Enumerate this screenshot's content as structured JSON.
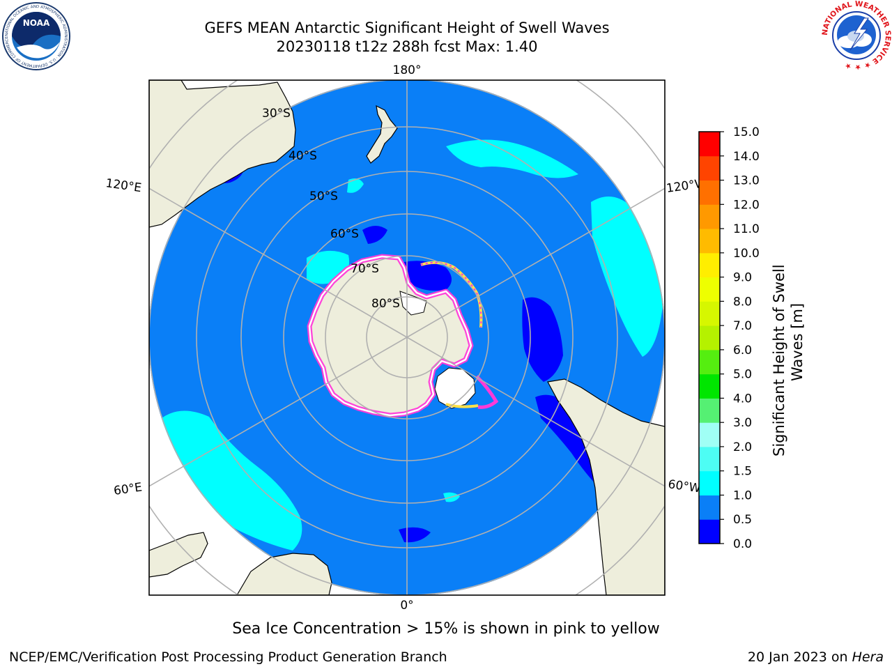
{
  "header": {
    "title_line1": "GEFS MEAN Antarctic Significant Height of Swell Waves",
    "title_line2": "20230118 t12z 288h fcst   Max: 1.40"
  },
  "logos": {
    "left": {
      "name": "NOAA",
      "ring_text": "NATIONAL OCEANIC AND ATMOSPHERIC ADMINISTRATION · U.S. DEPARTMENT OF COMMERCE ·",
      "center_text": "NOAA"
    },
    "right": {
      "name": "National Weather Service",
      "ring_text": "NATIONAL WEATHER SERVICE ★ ★ ★"
    }
  },
  "map": {
    "projection": "South polar stereographic",
    "meridian_labels": {
      "top": "180°",
      "bottom": "0°",
      "left_upper": "120°E",
      "left_lower": "60°E",
      "right_upper": "120°W",
      "right_lower": "60°W"
    },
    "latitude_labels": [
      "30°S",
      "40°S",
      "50°S",
      "60°S",
      "70°S",
      "80°S"
    ],
    "colors": {
      "ocean_swell_0_5_1_0": "#0a7ff7",
      "swell_0_0_5": "#0000ff",
      "swell_1_0_1_5": "#00ffff",
      "land": "#eeeedc",
      "graticule": "#b0b0b0",
      "ice_edge": "#ff3ad8"
    }
  },
  "colorbar": {
    "label": "Significant Height of Swell Waves [m]",
    "label_line1": "Significant Height of Swell",
    "label_line2": "Waves [m]",
    "ticks": [
      "15.0",
      "14.0",
      "13.0",
      "12.0",
      "11.0",
      "10.0",
      "9.0",
      "8.0",
      "7.0",
      "6.0",
      "5.0",
      "4.0",
      "3.0",
      "2.0",
      "1.5",
      "1.0",
      "0.5",
      "0.0"
    ],
    "bins": [
      {
        "from": 0.0,
        "to": 0.5,
        "color": "#0000ff"
      },
      {
        "from": 0.5,
        "to": 1.0,
        "color": "#0a7ff7"
      },
      {
        "from": 1.0,
        "to": 1.5,
        "color": "#00ffff"
      },
      {
        "from": 1.5,
        "to": 2.0,
        "color": "#4dfdf4"
      },
      {
        "from": 2.0,
        "to": 3.0,
        "color": "#a0fff5"
      },
      {
        "from": 3.0,
        "to": 4.0,
        "color": "#55f073"
      },
      {
        "from": 4.0,
        "to": 5.0,
        "color": "#00e600"
      },
      {
        "from": 5.0,
        "to": 6.0,
        "color": "#55ee10"
      },
      {
        "from": 6.0,
        "to": 7.0,
        "color": "#b5f100"
      },
      {
        "from": 7.0,
        "to": 8.0,
        "color": "#d6f700"
      },
      {
        "from": 8.0,
        "to": 9.0,
        "color": "#eeff00"
      },
      {
        "from": 9.0,
        "to": 10.0,
        "color": "#ffee00"
      },
      {
        "from": 10.0,
        "to": 11.0,
        "color": "#ffbb00"
      },
      {
        "from": 11.0,
        "to": 12.0,
        "color": "#ff9900"
      },
      {
        "from": 12.0,
        "to": 13.0,
        "color": "#ff7000"
      },
      {
        "from": 13.0,
        "to": 14.0,
        "color": "#ff4400"
      },
      {
        "from": 14.0,
        "to": 15.0,
        "color": "#ff0000"
      }
    ]
  },
  "caption": "Sea Ice Concentration > 15% is shown in pink to yellow",
  "footer": {
    "left": "NCEP/EMC/Verification Post Processing Product Generation Branch",
    "date": "20 Jan 2023 on ",
    "host": "Hera"
  }
}
